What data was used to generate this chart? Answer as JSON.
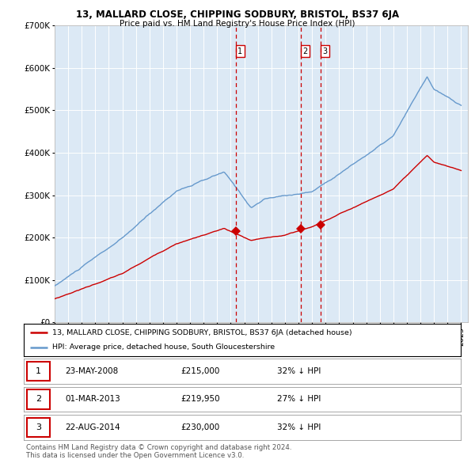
{
  "title1": "13, MALLARD CLOSE, CHIPPING SODBURY, BRISTOL, BS37 6JA",
  "title2": "Price paid vs. HM Land Registry's House Price Index (HPI)",
  "legend_line1": "13, MALLARD CLOSE, CHIPPING SODBURY, BRISTOL, BS37 6JA (detached house)",
  "legend_line2": "HPI: Average price, detached house, South Gloucestershire",
  "transactions": [
    {
      "num": 1,
      "date": "23-MAY-2008",
      "price": 215000,
      "pct": "32%",
      "dir": "↓",
      "x_year": 2008.39
    },
    {
      "num": 2,
      "date": "01-MAR-2013",
      "price": 219950,
      "pct": "27%",
      "dir": "↓",
      "x_year": 2013.17
    },
    {
      "num": 3,
      "date": "22-AUG-2014",
      "price": 230000,
      "pct": "32%",
      "dir": "↓",
      "x_year": 2014.64
    }
  ],
  "footnote1": "Contains HM Land Registry data © Crown copyright and database right 2024.",
  "footnote2": "This data is licensed under the Open Government Licence v3.0.",
  "red_color": "#cc0000",
  "blue_color": "#6699cc",
  "background_color": "#dce9f5",
  "ylim": [
    0,
    700000
  ],
  "xlim_start": 1995.0,
  "xlim_end": 2025.5
}
